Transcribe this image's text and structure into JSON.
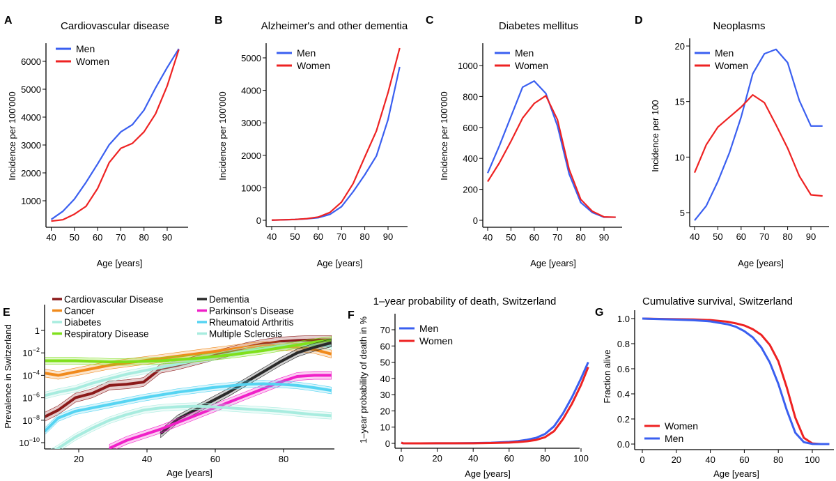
{
  "colors": {
    "men": "#3a5ff0",
    "women": "#ee2222"
  },
  "chart_data": [
    {
      "id": "A",
      "letter": "A",
      "type": "line",
      "title": "Cardiovascular disease",
      "xlabel": "Age [years]",
      "ylabel": "Incidence per 100'000",
      "x": [
        40,
        45,
        50,
        55,
        60,
        65,
        70,
        75,
        80,
        85,
        90,
        95
      ],
      "xticks": [
        40,
        50,
        60,
        70,
        80,
        90
      ],
      "yticks": [
        1000,
        2000,
        3000,
        4000,
        5000,
        6000
      ],
      "xlim": [
        38,
        99
      ],
      "ylim": [
        -100,
        6700
      ],
      "legend": "top-left",
      "series": [
        {
          "name": "Men",
          "color": "#3a5ff0",
          "values": [
            330,
            620,
            1060,
            1660,
            2320,
            3010,
            3470,
            3730,
            4250,
            5050,
            5780,
            6450
          ]
        },
        {
          "name": "Women",
          "color": "#ee2222",
          "values": [
            270,
            320,
            520,
            800,
            1440,
            2370,
            2880,
            3060,
            3470,
            4120,
            5120,
            6420
          ]
        }
      ]
    },
    {
      "id": "B",
      "letter": "B",
      "type": "line",
      "title": "Alzheimer's and other dementia",
      "xlabel": "Age [years]",
      "ylabel": "Incidence per 100'000",
      "x": [
        40,
        45,
        50,
        55,
        60,
        65,
        70,
        75,
        80,
        85,
        90,
        95
      ],
      "xticks": [
        40,
        50,
        60,
        70,
        80,
        90
      ],
      "yticks": [
        0,
        1000,
        2000,
        3000,
        4000,
        5000
      ],
      "xlim": [
        38,
        98
      ],
      "ylim": [
        -180,
        5500
      ],
      "legend": "top-left",
      "series": [
        {
          "name": "Men",
          "color": "#3a5ff0",
          "values": [
            5,
            15,
            25,
            45,
            80,
            180,
            420,
            880,
            1400,
            1980,
            3100,
            4720
          ]
        },
        {
          "name": "Women",
          "color": "#ee2222",
          "values": [
            5,
            15,
            25,
            50,
            100,
            240,
            560,
            1130,
            1950,
            2750,
            3930,
            5300
          ]
        }
      ]
    },
    {
      "id": "C",
      "letter": "C",
      "type": "line",
      "title": "Diabetes mellitus",
      "xlabel": "Age [years]",
      "ylabel": "Incidence per 100'000",
      "x": [
        40,
        45,
        50,
        55,
        60,
        65,
        70,
        75,
        80,
        85,
        90,
        95
      ],
      "xticks": [
        40,
        50,
        60,
        70,
        80,
        90
      ],
      "yticks": [
        0,
        200,
        400,
        600,
        800,
        1000
      ],
      "xlim": [
        38,
        97.5
      ],
      "ylim": [
        -45,
        1150
      ],
      "legend": "top-left",
      "series": [
        {
          "name": "Men",
          "color": "#3a5ff0",
          "values": [
            305,
            480,
            670,
            860,
            900,
            820,
            610,
            300,
            115,
            50,
            20,
            20
          ]
        },
        {
          "name": "Women",
          "color": "#ee2222",
          "values": [
            250,
            370,
            510,
            660,
            755,
            805,
            650,
            330,
            135,
            58,
            22,
            20
          ]
        }
      ]
    },
    {
      "id": "D",
      "letter": "D",
      "type": "line",
      "title": "Neoplasms",
      "xlabel": "Age [years]",
      "ylabel": "Incidence per 100",
      "x": [
        40,
        45,
        50,
        55,
        60,
        65,
        70,
        75,
        80,
        85,
        90,
        95
      ],
      "xticks": [
        40,
        50,
        60,
        70,
        80,
        90
      ],
      "yticks": [
        5,
        10,
        15,
        20
      ],
      "xlim": [
        38,
        97.5
      ],
      "ylim": [
        3.7,
        20.8
      ],
      "legend": "top-left",
      "series": [
        {
          "name": "Men",
          "color": "#3a5ff0",
          "values": [
            4.3,
            5.6,
            7.8,
            10.4,
            13.6,
            17.5,
            19.3,
            19.7,
            18.5,
            15.1,
            12.8,
            12.8
          ]
        },
        {
          "name": "Women",
          "color": "#ee2222",
          "values": [
            8.6,
            11.1,
            12.7,
            13.6,
            14.5,
            15.6,
            14.9,
            12.9,
            10.8,
            8.3,
            6.6,
            6.5
          ]
        }
      ]
    },
    {
      "id": "E",
      "letter": "E",
      "type": "line",
      "title": "",
      "xlabel": "Age [years]",
      "ylabel": "Prevalence in Switzerland",
      "yscale": "log10",
      "x": [
        10,
        14,
        19,
        24,
        29,
        34,
        39,
        44,
        49,
        54,
        59,
        64,
        69,
        74,
        79,
        84,
        89,
        94
      ],
      "xticks": [
        20,
        40,
        60,
        80
      ],
      "yticks": [
        {
          "exp": 0,
          "label": "1"
        },
        {
          "exp": -2,
          "label": "10",
          "sup": "−2"
        },
        {
          "exp": -4,
          "label": "10",
          "sup": "−4"
        },
        {
          "exp": -6,
          "label": "10",
          "sup": "−6"
        },
        {
          "exp": -8,
          "label": "10",
          "sup": "−8"
        },
        {
          "exp": -10,
          "label": "10",
          "sup": "−10"
        }
      ],
      "xlim": [
        10,
        95
      ],
      "ylim_log10": [
        -10.55,
        2.6
      ],
      "legend": "top, two columns",
      "series": [
        {
          "name": "Cardiovascular Disease",
          "color": "#8b1a1a",
          "band_log10": 0.4,
          "log10_values": [
            -7.7,
            -7.1,
            -6.0,
            -5.6,
            -4.9,
            -4.8,
            -4.6,
            -3.4,
            -3.1,
            -2.7,
            -2.3,
            -1.9,
            -1.5,
            -1.2,
            -1.0,
            -0.9,
            -0.85,
            -0.85
          ]
        },
        {
          "name": "Cancer",
          "color": "#f08a1c",
          "band_log10": 0.35,
          "log10_values": [
            -3.8,
            -4.0,
            -3.7,
            -3.4,
            -3.1,
            -2.9,
            -2.7,
            -2.5,
            -2.3,
            -2.1,
            -1.9,
            -1.7,
            -1.5,
            -1.35,
            -1.4,
            -1.5,
            -1.7,
            -2.1
          ]
        },
        {
          "name": "Diabetes",
          "color": "#a8ecdf",
          "band_log10": 0.3,
          "log10_values": [
            -5.8,
            -5.5,
            -5.2,
            -4.7,
            -4.3,
            -3.9,
            -3.6,
            -3.3,
            -3.0,
            -2.7,
            -2.4,
            -2.1,
            -1.8,
            -1.55,
            -1.4,
            -1.3,
            -1.3,
            -1.4
          ]
        },
        {
          "name": "Respiratory Disease",
          "color": "#7fe01c",
          "band_log10": 0.3,
          "log10_values": [
            -2.7,
            -2.7,
            -2.7,
            -2.75,
            -2.8,
            -2.8,
            -2.75,
            -2.7,
            -2.6,
            -2.5,
            -2.35,
            -2.2,
            -2.0,
            -1.8,
            -1.55,
            -1.3,
            -1.05,
            -0.85
          ]
        },
        {
          "name": "Dementia",
          "color": "#2a2a2a",
          "band_log10": 0.35,
          "log10_values": [
            null,
            null,
            null,
            null,
            null,
            null,
            null,
            -9.2,
            -7.9,
            -7.1,
            -6.3,
            -5.5,
            -4.6,
            -3.7,
            -2.8,
            -2.0,
            -1.5,
            -1.1
          ]
        },
        {
          "name": "Parkinson's Disease",
          "color": "#f020c8",
          "band_log10": 0.35,
          "log10_values": [
            null,
            null,
            null,
            null,
            -10.5,
            -9.8,
            -9.3,
            -8.8,
            -8.2,
            -7.6,
            -7.0,
            -6.4,
            -5.8,
            -5.2,
            -4.6,
            -4.1,
            -4.0,
            -4.0
          ]
        },
        {
          "name": "Rheumatoid Arthritis",
          "color": "#56d4f2",
          "band_log10": 0.3,
          "log10_values": [
            -9.0,
            -7.8,
            -7.2,
            -6.9,
            -6.6,
            -6.3,
            -6.0,
            -5.75,
            -5.5,
            -5.3,
            -5.1,
            -4.95,
            -4.8,
            -4.75,
            -4.8,
            -4.9,
            -5.1,
            -5.35
          ]
        },
        {
          "name": "Multiple Sclerosis",
          "color": "#a8ecdf",
          "band_log10": 0.3,
          "log10_values": [
            -11.2,
            -10.5,
            -9.5,
            -8.7,
            -8.0,
            -7.5,
            -7.1,
            -6.9,
            -6.8,
            -6.75,
            -6.8,
            -6.9,
            -7.0,
            -7.1,
            -7.2,
            -7.35,
            -7.5,
            -7.6
          ]
        }
      ]
    },
    {
      "id": "F",
      "letter": "F",
      "type": "line",
      "title": "1–year probability of death, Switzerland",
      "xlabel": "Age [years]",
      "ylabel": "1–year probability of death in %",
      "x": [
        0,
        1,
        10,
        20,
        30,
        40,
        50,
        60,
        65,
        70,
        75,
        80,
        85,
        90,
        95,
        100,
        104
      ],
      "xticks": [
        0,
        20,
        40,
        60,
        80,
        100
      ],
      "yticks": [
        0,
        10,
        20,
        30,
        40,
        50,
        60,
        70
      ],
      "xlim": [
        -2,
        105
      ],
      "ylim": [
        -2,
        79
      ],
      "legend": "top-left",
      "series": [
        {
          "name": "Men",
          "color": "#3a5ff0",
          "values": [
            0.5,
            0.05,
            0.02,
            0.07,
            0.08,
            0.15,
            0.4,
            0.9,
            1.4,
            2.2,
            3.4,
            5.8,
            10.5,
            18.5,
            28.5,
            40,
            50
          ]
        },
        {
          "name": "Women",
          "color": "#ee2222",
          "values": [
            0.4,
            0.04,
            0.01,
            0.03,
            0.04,
            0.08,
            0.22,
            0.5,
            0.8,
            1.3,
            2.1,
            3.8,
            7.5,
            15,
            24.5,
            36,
            47
          ]
        }
      ]
    },
    {
      "id": "G",
      "letter": "G",
      "type": "line",
      "title": "Cumulative survival, Switzerland",
      "xlabel": "Age [years]",
      "ylabel": "Fraction alive",
      "x": [
        0,
        10,
        20,
        30,
        40,
        50,
        55,
        60,
        65,
        70,
        75,
        80,
        85,
        90,
        95,
        100,
        105,
        110
      ],
      "xticks": [
        0,
        20,
        40,
        60,
        80,
        100
      ],
      "yticks": [
        0.0,
        0.2,
        0.4,
        0.6,
        0.8,
        1.0
      ],
      "ytick_labels": [
        "0.0",
        "0.2",
        "0.4",
        "0.6",
        "0.8",
        "1.0"
      ],
      "xlim": [
        -4,
        113
      ],
      "ylim": [
        -0.04,
        1.06
      ],
      "legend": "bottom-left",
      "series": [
        {
          "name": "Women",
          "color": "#ee2222",
          "values": [
            1.0,
            0.997,
            0.995,
            0.993,
            0.988,
            0.975,
            0.962,
            0.945,
            0.915,
            0.87,
            0.79,
            0.66,
            0.45,
            0.21,
            0.05,
            0.005,
            0.0,
            0.0
          ]
        },
        {
          "name": "Men",
          "color": "#3a5ff0",
          "values": [
            1.0,
            0.996,
            0.992,
            0.987,
            0.978,
            0.955,
            0.935,
            0.9,
            0.85,
            0.77,
            0.65,
            0.48,
            0.27,
            0.09,
            0.015,
            0.001,
            0.0,
            0.0
          ]
        }
      ]
    }
  ]
}
